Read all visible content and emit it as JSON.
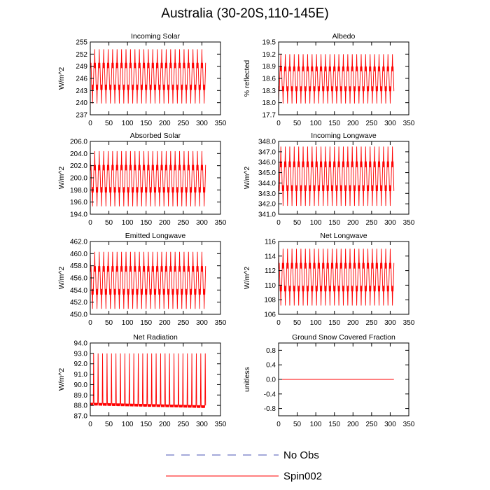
{
  "title": "Australia (30-20S,110-145E)",
  "legend": {
    "entries": [
      {
        "label": "No Obs",
        "color": "#4a55b5",
        "dash": true
      },
      {
        "label": "Spin002",
        "color": "#ff0000",
        "dash": false
      }
    ]
  },
  "chart_data": [
    {
      "type": "line",
      "title": "Incoming Solar",
      "xlabel": "",
      "ylabel": "W/m^2",
      "xlim": [
        0,
        350
      ],
      "ylim": [
        237,
        255
      ],
      "xticks": [
        0,
        50,
        100,
        150,
        200,
        250,
        300,
        350
      ],
      "yticks": [
        237,
        240,
        243,
        246,
        249,
        252,
        255
      ],
      "ytick_labels": [
        "237",
        "240",
        "243",
        "246",
        "249",
        "252",
        "255"
      ],
      "series": [
        {
          "name": "Spin002",
          "color": "#ff0000",
          "x_start": 0,
          "x_end": 310,
          "period": 12,
          "min": 239.8,
          "max": 253.2,
          "phase": 0
        }
      ]
    },
    {
      "type": "line",
      "title": "Albedo",
      "xlabel": "",
      "ylabel": "% reflected",
      "xlim": [
        0,
        350
      ],
      "ylim": [
        17.7,
        19.5
      ],
      "xticks": [
        0,
        50,
        100,
        150,
        200,
        250,
        300,
        350
      ],
      "yticks": [
        17.7,
        18.0,
        18.3,
        18.6,
        18.9,
        19.2,
        19.5
      ],
      "ytick_labels": [
        "17.7",
        "18.0",
        "18.3",
        "18.6",
        "18.9",
        "19.2",
        "19.5"
      ],
      "series": [
        {
          "name": "Spin002",
          "color": "#ff0000",
          "x_start": 0,
          "x_end": 310,
          "period": 12,
          "min": 17.98,
          "max": 19.2,
          "phase": 6
        }
      ]
    },
    {
      "type": "line",
      "title": "Absorbed Solar",
      "xlabel": "",
      "ylabel": "W/m^2",
      "xlim": [
        0,
        350
      ],
      "ylim": [
        194,
        206
      ],
      "xticks": [
        0,
        50,
        100,
        150,
        200,
        250,
        300,
        350
      ],
      "yticks": [
        194,
        196,
        198,
        200,
        202,
        204,
        206
      ],
      "ytick_labels": [
        "194.0",
        "196.0",
        "198.0",
        "200.0",
        "202.0",
        "204.0",
        "206.0"
      ],
      "series": [
        {
          "name": "Spin002",
          "color": "#ff0000",
          "x_start": 0,
          "x_end": 310,
          "period": 12,
          "min": 195.3,
          "max": 204.4,
          "phase": 0
        }
      ]
    },
    {
      "type": "line",
      "title": "Incoming Longwave",
      "xlabel": "",
      "ylabel": "W/m^2",
      "xlim": [
        0,
        350
      ],
      "ylim": [
        341,
        348
      ],
      "xticks": [
        0,
        50,
        100,
        150,
        200,
        250,
        300,
        350
      ],
      "yticks": [
        341,
        342,
        343,
        344,
        345,
        346,
        347,
        348
      ],
      "ytick_labels": [
        "341.0",
        "342.0",
        "343.0",
        "344.0",
        "345.0",
        "346.0",
        "347.0",
        "348.0"
      ],
      "series": [
        {
          "name": "Spin002",
          "color": "#ff0000",
          "x_start": 0,
          "x_end": 310,
          "period": 12,
          "min": 341.8,
          "max": 347.5,
          "phase": 6
        }
      ]
    },
    {
      "type": "line",
      "title": "Emitted Longwave",
      "xlabel": "",
      "ylabel": "W/m^2",
      "xlim": [
        0,
        350
      ],
      "ylim": [
        450,
        462
      ],
      "xticks": [
        0,
        50,
        100,
        150,
        200,
        250,
        300,
        350
      ],
      "yticks": [
        450,
        452,
        454,
        456,
        458,
        460,
        462
      ],
      "ytick_labels": [
        "450.0",
        "452.0",
        "454.0",
        "456.0",
        "458.0",
        "460.0",
        "462.0"
      ],
      "series": [
        {
          "name": "Spin002",
          "color": "#ff0000",
          "x_start": 0,
          "x_end": 310,
          "period": 12,
          "min": 450.9,
          "max": 460.3,
          "phase": 0
        }
      ]
    },
    {
      "type": "line",
      "title": "Net Longwave",
      "xlabel": "",
      "ylabel": "W/m^2",
      "xlim": [
        0,
        350
      ],
      "ylim": [
        106,
        116
      ],
      "xticks": [
        0,
        50,
        100,
        150,
        200,
        250,
        300,
        350
      ],
      "yticks": [
        106,
        108,
        110,
        112,
        114,
        116
      ],
      "ytick_labels": [
        "106",
        "108",
        "110",
        "112",
        "114",
        "116"
      ],
      "series": [
        {
          "name": "Spin002",
          "color": "#ff0000",
          "x_start": 0,
          "x_end": 310,
          "period": 12,
          "min": 107.2,
          "max": 115.0,
          "phase": 0
        }
      ]
    },
    {
      "type": "line",
      "title": "Net Radiation",
      "xlabel": "",
      "ylabel": "W/m^2",
      "xlim": [
        0,
        350
      ],
      "ylim": [
        87,
        94
      ],
      "xticks": [
        0,
        50,
        100,
        150,
        200,
        250,
        300,
        350
      ],
      "yticks": [
        87,
        88,
        89,
        90,
        91,
        92,
        93,
        94
      ],
      "ytick_labels": [
        "87.0",
        "88.0",
        "89.0",
        "90.0",
        "91.0",
        "92.0",
        "93.0",
        "94.0"
      ],
      "series": [
        {
          "name": "Spin002",
          "color": "#ff0000",
          "x_start": 0,
          "x_end": 310,
          "period": 12,
          "min": 88.0,
          "max": 93.0,
          "phase": 3,
          "shape": "spike"
        }
      ]
    },
    {
      "type": "line",
      "title": "Ground Snow Covered Fraction",
      "xlabel": "",
      "ylabel": "unitless",
      "xlim": [
        0,
        350
      ],
      "ylim": [
        -1,
        1
      ],
      "xticks": [
        0,
        50,
        100,
        150,
        200,
        250,
        300,
        350
      ],
      "yticks": [
        -0.8,
        -0.4,
        0.0,
        0.4,
        0.8
      ],
      "ytick_labels": [
        "-0.8",
        "-0.4",
        "0.0",
        "0.4",
        "0.8"
      ],
      "series": [
        {
          "name": "Spin002",
          "color": "#ff0000",
          "x_start": 0,
          "x_end": 310,
          "period": 12,
          "min": 0.0,
          "max": 0.0,
          "phase": 0
        }
      ]
    }
  ]
}
